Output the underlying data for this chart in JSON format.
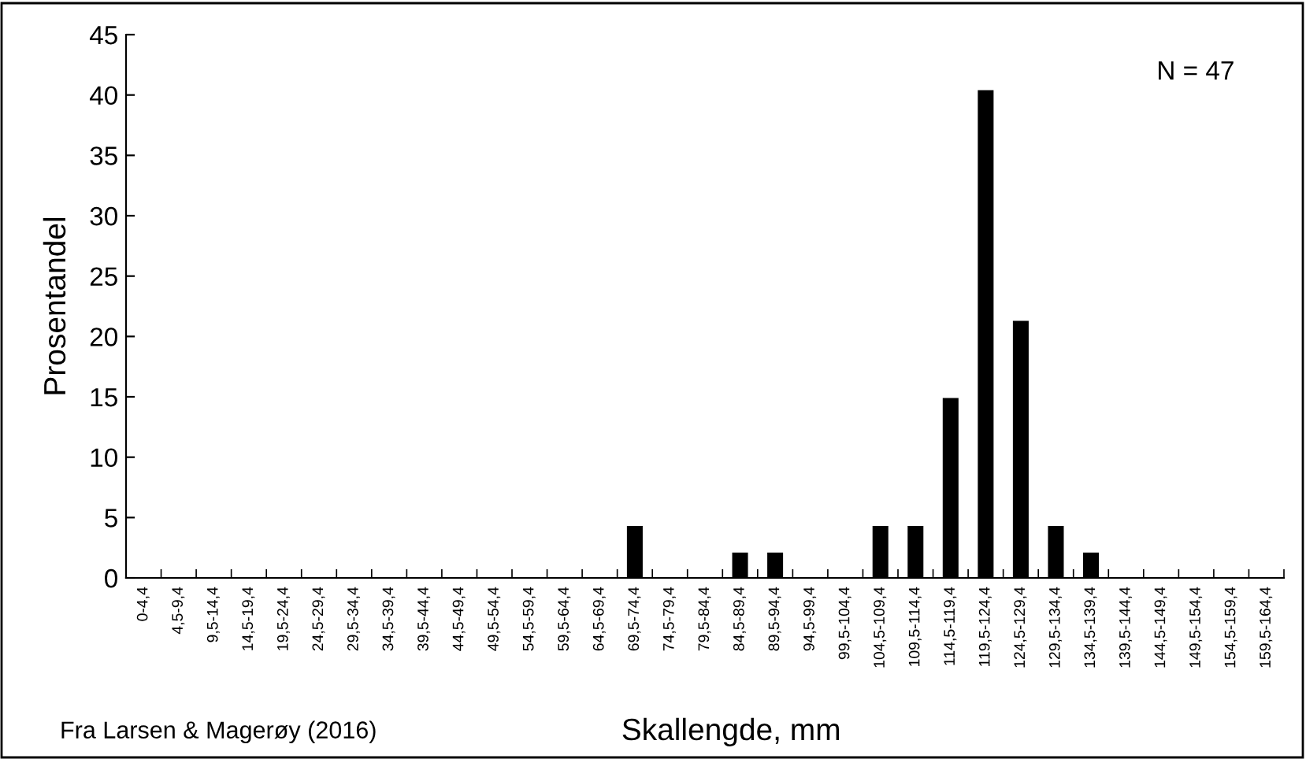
{
  "chart_data": {
    "type": "bar",
    "xlabel": "Skallengde, mm",
    "ylabel": "Prosentandel",
    "categories": [
      "0-4,4",
      "4,5-9,4",
      "9,5-14,4",
      "14,5-19,4",
      "19,5-24,4",
      "24,5-29,4",
      "29,5-34,4",
      "34,5-39,4",
      "39,5-44,4",
      "44,5-49,4",
      "49,5-54,4",
      "54,5-59,4",
      "59,5-64,4",
      "64,5-69,4",
      "69,5-74,4",
      "74,5-79,4",
      "79,5-84,4",
      "84,5-89,4",
      "89,5-94,4",
      "94,5-99,4",
      "99,5-104,4",
      "104,5-109,4",
      "109,5-114,4",
      "114,5-119,4",
      "119,5-124,4",
      "124,5-129,4",
      "129,5-134,4",
      "134,5-139,4",
      "139,5-144,4",
      "144,5-149,4",
      "149,5-154,4",
      "154,5-159,4",
      "159,5-164,4"
    ],
    "values": [
      0,
      0,
      0,
      0,
      0,
      0,
      0,
      0,
      0,
      0,
      0,
      0,
      0,
      0,
      4.3,
      0,
      0,
      2.1,
      2.1,
      0,
      0,
      4.3,
      4.3,
      14.9,
      40.4,
      21.3,
      4.3,
      2.1,
      0,
      0,
      0,
      0,
      0
    ],
    "color": "#000000",
    "ylim": [
      0,
      45
    ],
    "yticks": [
      0,
      5,
      10,
      15,
      20,
      25,
      30,
      35,
      40,
      45
    ],
    "grid": false,
    "legend": false,
    "annotations": [
      "N = 47",
      "Fra Larsen & Magerøy (2016)"
    ]
  }
}
